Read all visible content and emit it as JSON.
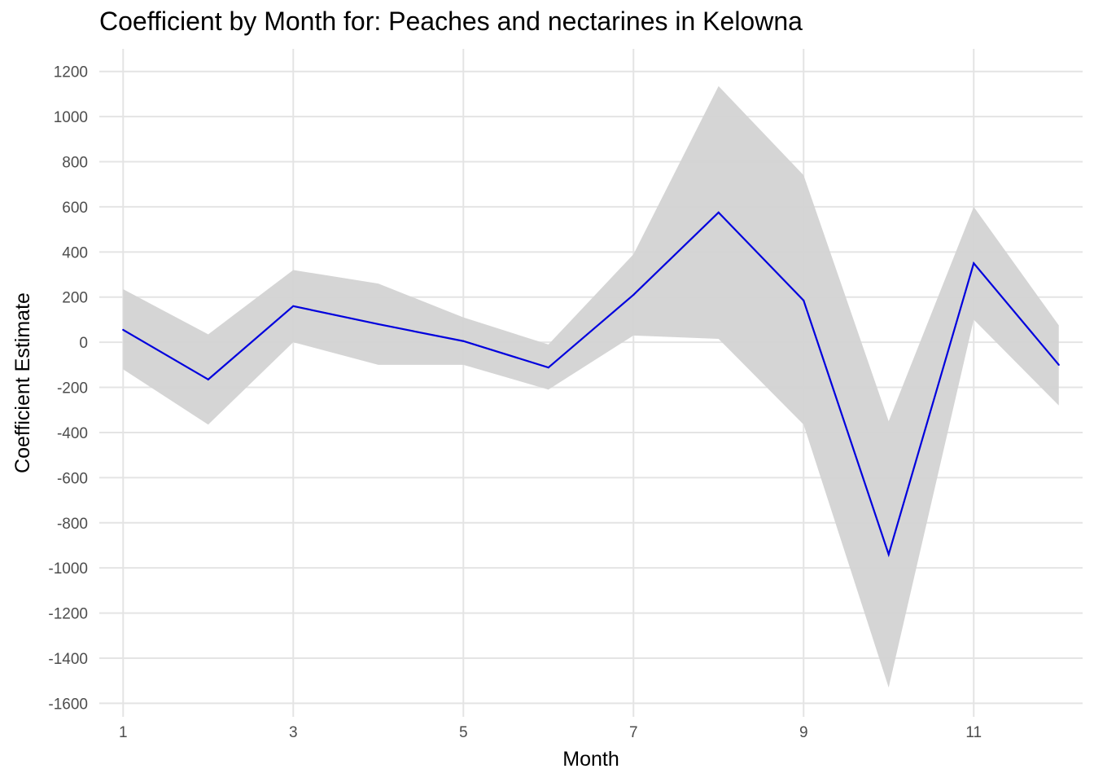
{
  "chart_data": {
    "type": "line",
    "title": "Coefficient by Month for: Peaches and nectarines in Kelowna",
    "xlabel": "Month",
    "ylabel": "Coefficient Estimate",
    "x": [
      1,
      2,
      3,
      4,
      5,
      6,
      7,
      8,
      9,
      10,
      11,
      12
    ],
    "series": [
      {
        "values": [
          55,
          -165,
          160,
          80,
          5,
          -112,
          210,
          575,
          185,
          -940,
          350,
          -100
        ],
        "lower": [
          -120,
          -365,
          0,
          -100,
          -100,
          -210,
          30,
          15,
          -365,
          -1530,
          100,
          -280
        ],
        "upper": [
          235,
          35,
          320,
          260,
          110,
          -10,
          390,
          1135,
          740,
          -350,
          600,
          75
        ],
        "line_color": "#0000dd",
        "band_color": "#d3d3d3"
      }
    ],
    "xticks": [
      "1",
      "3",
      "5",
      "7",
      "9",
      "11"
    ],
    "yticks": [
      "1200",
      "1000",
      "800",
      "600",
      "400",
      "200",
      "0",
      "-200",
      "-400",
      "-600",
      "-800",
      "-1000",
      "-1200",
      "-1400",
      "-1600"
    ],
    "xlim": [
      0.72,
      12.28
    ],
    "ylim": [
      -1660,
      1300
    ],
    "grid": true,
    "legend": "none"
  }
}
